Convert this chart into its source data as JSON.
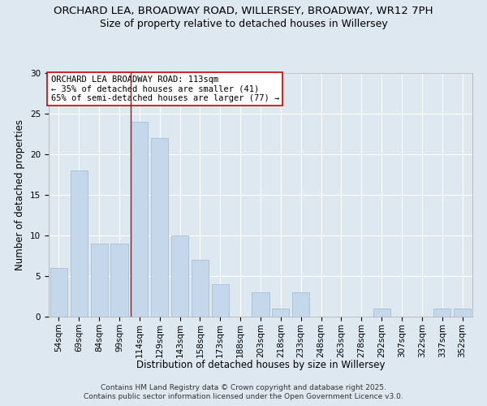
{
  "title_line1": "ORCHARD LEA, BROADWAY ROAD, WILLERSEY, BROADWAY, WR12 7PH",
  "title_line2": "Size of property relative to detached houses in Willersey",
  "xlabel": "Distribution of detached houses by size in Willersey",
  "ylabel": "Number of detached properties",
  "categories": [
    "54sqm",
    "69sqm",
    "84sqm",
    "99sqm",
    "114sqm",
    "129sqm",
    "143sqm",
    "158sqm",
    "173sqm",
    "188sqm",
    "203sqm",
    "218sqm",
    "233sqm",
    "248sqm",
    "263sqm",
    "278sqm",
    "292sqm",
    "307sqm",
    "322sqm",
    "337sqm",
    "352sqm"
  ],
  "values": [
    6,
    18,
    9,
    9,
    24,
    22,
    10,
    7,
    4,
    0,
    3,
    1,
    3,
    0,
    0,
    0,
    1,
    0,
    0,
    1,
    1
  ],
  "bar_color": "#c5d8eb",
  "bar_edgecolor": "#a0b8cc",
  "ylim": [
    0,
    30
  ],
  "yticks": [
    0,
    5,
    10,
    15,
    20,
    25,
    30
  ],
  "red_line_index": 4,
  "annotation_text": "ORCHARD LEA BROADWAY ROAD: 113sqm\n← 35% of detached houses are smaller (41)\n65% of semi-detached houses are larger (77) →",
  "annotation_box_color": "#ffffff",
  "annotation_box_edgecolor": "#cc0000",
  "footer_line1": "Contains HM Land Registry data © Crown copyright and database right 2025.",
  "footer_line2": "Contains public sector information licensed under the Open Government Licence v3.0.",
  "background_color": "#dde8f0",
  "plot_bg_color": "#dde8f0",
  "grid_color": "#ffffff",
  "title_fontsize": 9.5,
  "subtitle_fontsize": 9,
  "axis_label_fontsize": 8.5,
  "tick_fontsize": 7.5,
  "annotation_fontsize": 7.5,
  "footer_fontsize": 6.5
}
